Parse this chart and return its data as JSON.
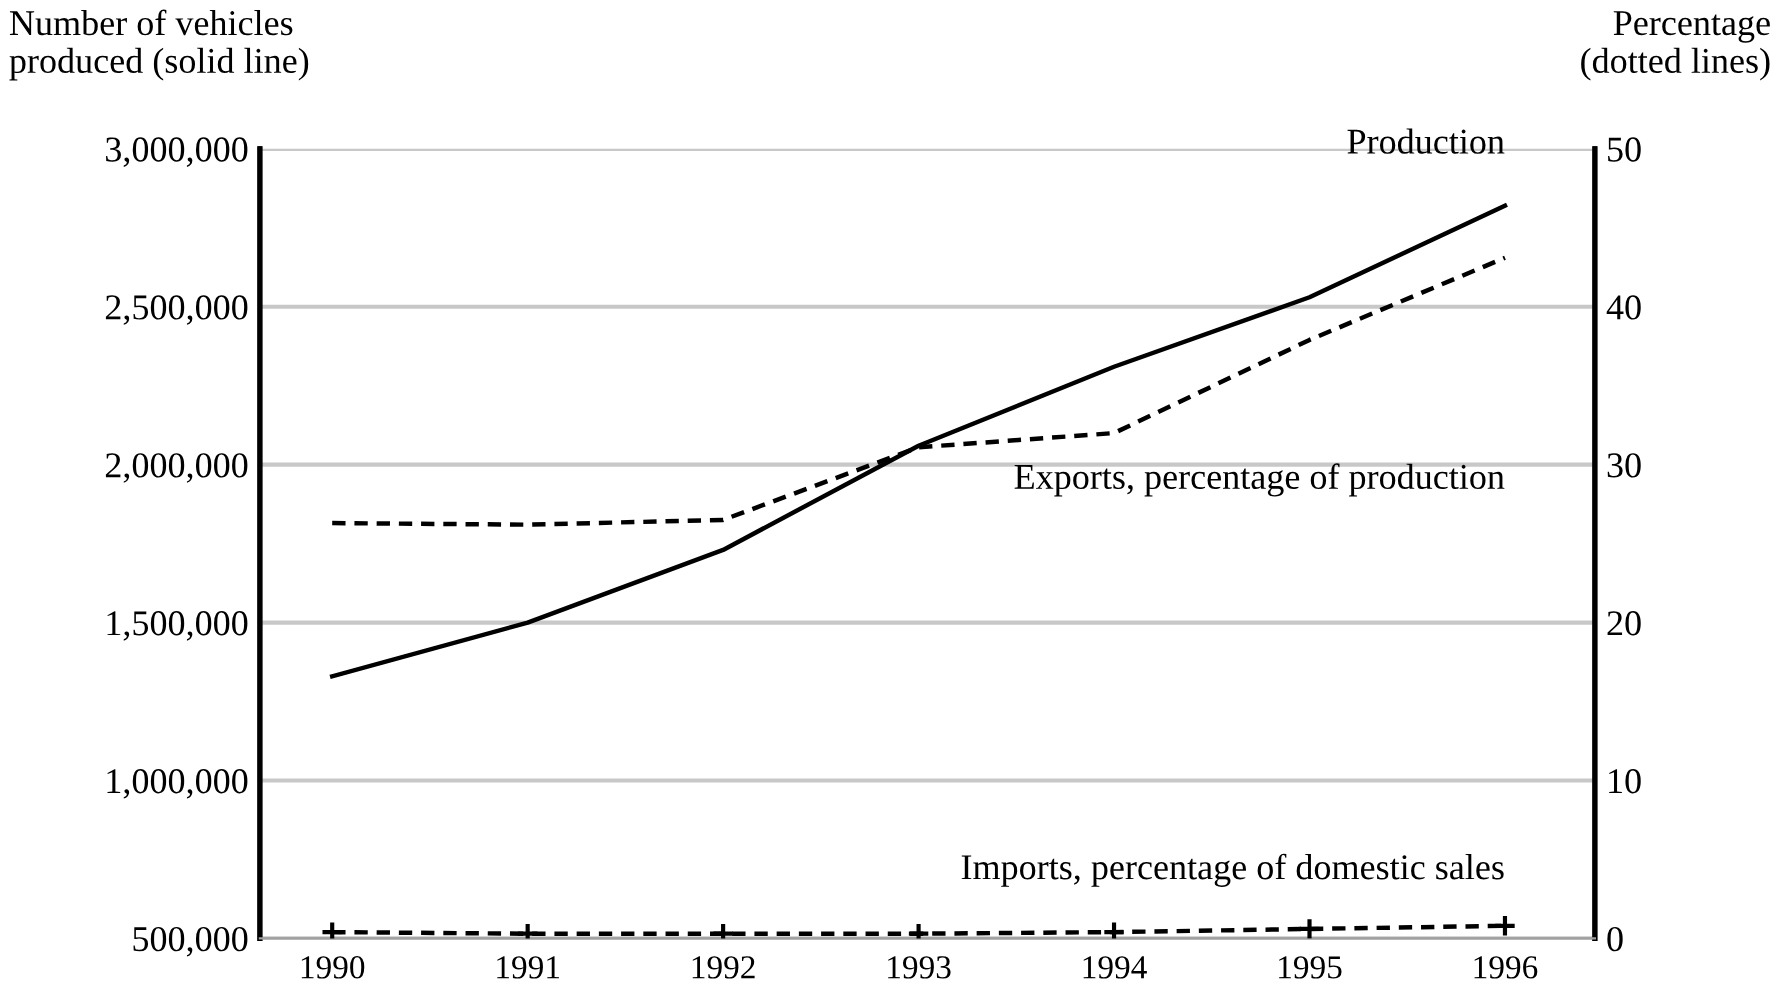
{
  "chart_data": {
    "type": "line",
    "ylabel": "Number of vehicles\nproduced (solid line)",
    "y2label": "Percentage\n(dotted lines)",
    "categories": [
      "1990",
      "1991",
      "1992",
      "1993",
      "1994",
      "1995",
      "1996"
    ],
    "series": [
      {
        "name": "Production",
        "color": "#000000",
        "values": [
          1330000,
          1500000,
          1730000,
          2060000,
          2310000,
          2530000,
          2820000
        ],
        "line_style": "solid",
        "marker": "none"
      },
      {
        "name": "Exports, percentage of production",
        "color": "#000000",
        "axis": "y2",
        "values": [
          26.3,
          26.2,
          26.5,
          31.1,
          32.0,
          37.9,
          43.1
        ],
        "line_style": "dashed",
        "marker": "none"
      },
      {
        "name": "Imports, percentage of domestic sales",
        "color": "#000000",
        "axis": "y2",
        "values": [
          0.4,
          0.3,
          0.3,
          0.3,
          0.4,
          0.6,
          0.8
        ],
        "line_style": "dashed",
        "marker": "cross"
      }
    ],
    "ylim": [
      500000,
      3000000
    ],
    "yticks": [
      {
        "value": 500000,
        "label": "500,000"
      },
      {
        "value": 1000000,
        "label": "1,000,000"
      },
      {
        "value": 1500000,
        "label": "1,500,000"
      },
      {
        "value": 2000000,
        "label": "2,000,000"
      },
      {
        "value": 2500000,
        "label": "2,500,000"
      },
      {
        "value": 3000000,
        "label": "3,000,000"
      }
    ],
    "y2lim": [
      0,
      50
    ],
    "y2ticks": [
      0,
      10,
      20,
      30,
      40,
      50
    ],
    "grid": "y",
    "legend": false
  }
}
